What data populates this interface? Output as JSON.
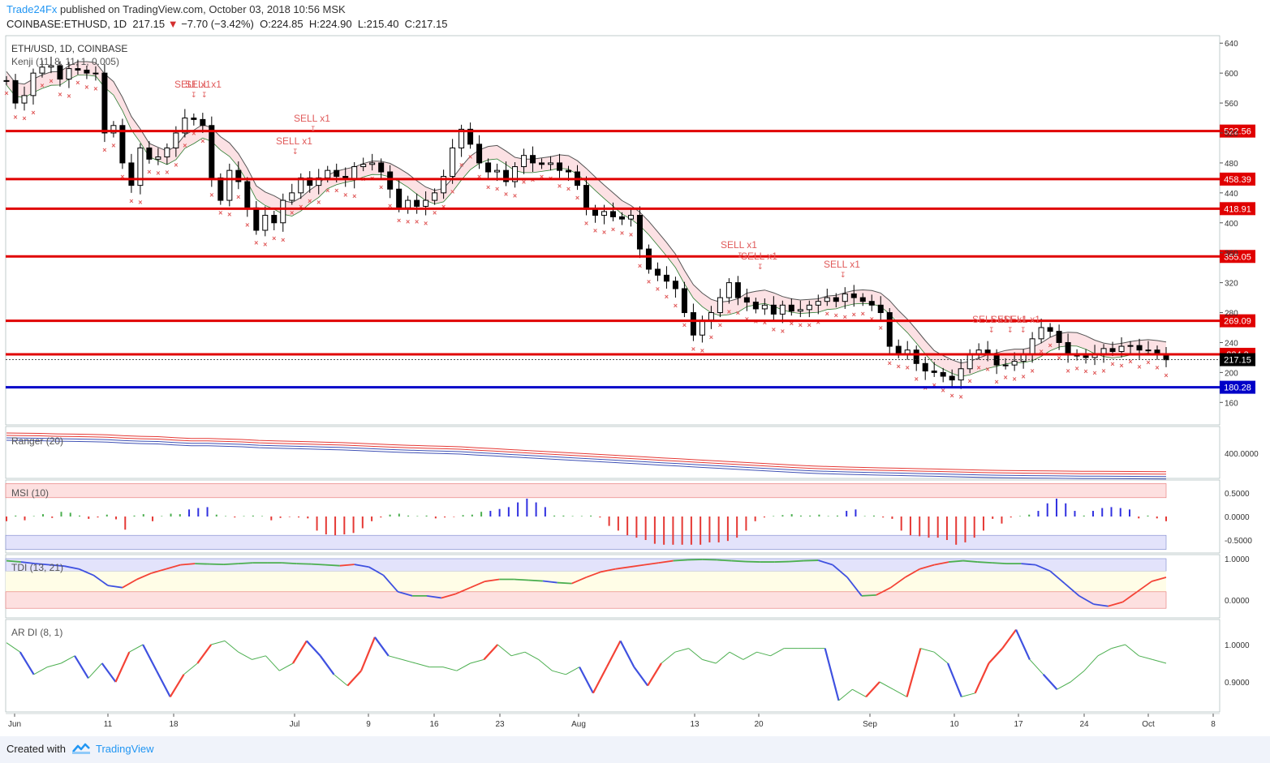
{
  "header": {
    "brand": "Trade24Fx",
    "published": "published on TradingView.com, October 03, 2018 10:56 MSK",
    "symbol": "COINBASE:ETHUSD, 1D",
    "last": "217.15",
    "change": "−7.70 (−3.42%)",
    "o_label": "O:",
    "o": "224.85",
    "h_label": "H:",
    "h": "224.90",
    "l_label": "L:",
    "l": "215.40",
    "c_label": "C:",
    "c": "217.15"
  },
  "footer": {
    "created": "Created with",
    "tradingview": "TradingView"
  },
  "colors": {
    "level_red": "#e00000",
    "level_blue": "#0000c8",
    "sell_text": "#e05a5a",
    "ranger_red": "#e53935",
    "ranger_blue": "#3f51b5",
    "msi_red": "#e53935",
    "msi_blue": "#3030e0",
    "line_green": "#4caf50",
    "tdi_red": "#f44336",
    "tdi_blue": "#3f51e0"
  },
  "chart_data": [
    {
      "type": "candlestick",
      "title": "ETH/USD, 1D, COINBASE",
      "indicator": "Kenji (11, 8, 11, 1, 0.005)",
      "ylim": [
        130,
        650
      ],
      "y_ticks": [
        160,
        200,
        240,
        280,
        320,
        360,
        400,
        440,
        480,
        520,
        560,
        600,
        640
      ],
      "x_labels": [
        "Jun",
        "11",
        "18",
        "Jul",
        "9",
        "16",
        "23",
        "Aug",
        "13",
        "20",
        "Sep",
        "10",
        "17",
        "24",
        "Oct",
        "8"
      ],
      "price_levels": [
        522.56,
        458.39,
        418.91,
        355.05,
        269.09,
        224.3,
        180.28
      ],
      "support_level": 180.28,
      "last_price": 217.15,
      "close": [
        590,
        560,
        570,
        600,
        608,
        610,
        592,
        606,
        604,
        600,
        600,
        520,
        530,
        480,
        450,
        500,
        485,
        488,
        500,
        520,
        540,
        538,
        530,
        460,
        430,
        470,
        455,
        420,
        390,
        410,
        400,
        430,
        440,
        460,
        450,
        460,
        470,
        462,
        458,
        475,
        478,
        480,
        468,
        445,
        420,
        430,
        422,
        430,
        440,
        462,
        500,
        525,
        505,
        480,
        468,
        470,
        455,
        475,
        490,
        480,
        478,
        480,
        470,
        468,
        450,
        418,
        410,
        415,
        408,
        405,
        410,
        365,
        338,
        330,
        322,
        312,
        280,
        250,
        270,
        280,
        300,
        320,
        300,
        294,
        285,
        290,
        278,
        290,
        282,
        284,
        290,
        295,
        300,
        295,
        305,
        300,
        295,
        290,
        280,
        235,
        225,
        230,
        212,
        202,
        200,
        195,
        190,
        205,
        225,
        230,
        225,
        210,
        210,
        215,
        225,
        245,
        260,
        255,
        240,
        225,
        222,
        220,
        225,
        232,
        228,
        235,
        236,
        230,
        230,
        225,
        217
      ],
      "sell_signals": [
        {
          "label": "SELL x2",
          "near": "Jun 4"
        },
        {
          "label": "SELL x1",
          "near": "Jun 18"
        },
        {
          "label": "SELL x1",
          "near": "Jun 19"
        },
        {
          "label": "SELL x1",
          "near": "Jul 2"
        },
        {
          "label": "SELL x1",
          "near": "Jul 5"
        },
        {
          "label": "SELL x1",
          "near": "Aug 17"
        },
        {
          "label": "SELL x1",
          "near": "Aug 20"
        },
        {
          "label": "SELL x1",
          "near": "Aug 30"
        },
        {
          "label": "SELL x1",
          "near": "Sep 15"
        },
        {
          "label": "SELL x1",
          "near": "Sep 16"
        },
        {
          "label": "SELL x1",
          "near": "Sep 17"
        }
      ]
    },
    {
      "type": "line",
      "title": "Ranger (20)",
      "y_ticks": [
        "400.0000"
      ],
      "series": [
        {
          "values": [
            640,
            638,
            636,
            630,
            628,
            625,
            620,
            610,
            604,
            600,
            590,
            580,
            580,
            575,
            570,
            560,
            555,
            550,
            545,
            540,
            535,
            528,
            520,
            512,
            506,
            500,
            496,
            490,
            480,
            470,
            460,
            450,
            440,
            430,
            420,
            410,
            400,
            390,
            380,
            370,
            360,
            350,
            340,
            330,
            320,
            310,
            300,
            290,
            282,
            276,
            270,
            266,
            262,
            258,
            254,
            250,
            246,
            242,
            238,
            234,
            232,
            230,
            228,
            226,
            225,
            224,
            223,
            222,
            221,
            220
          ]
        }
      ]
    },
    {
      "type": "bar",
      "title": "MSI (10)",
      "y_ticks": [
        "0.5000",
        "0.0000",
        "-0.5000"
      ],
      "values": [
        -0.1,
        0.02,
        -0.08,
        0.01,
        0.05,
        -0.03,
        0.1,
        0.08,
        0.02,
        -0.05,
        -0.02,
        0.04,
        -0.06,
        -0.28,
        0.02,
        0.05,
        -0.1,
        0.01,
        0.06,
        0.05,
        0.15,
        0.18,
        0.2,
        0.04,
        0.01,
        -0.02,
        0.01,
        0.02,
        0.01,
        -0.08,
        -0.03,
        -0.01,
        -0.02,
        -0.04,
        -0.3,
        -0.38,
        -0.4,
        -0.38,
        -0.35,
        -0.25,
        -0.1,
        -0.02,
        0.04,
        0.06,
        0.02,
        0.01,
        0.02,
        -0.04,
        -0.02,
        -0.01,
        0.03,
        0.04,
        0.1,
        0.12,
        0.16,
        0.2,
        0.3,
        0.38,
        0.3,
        0.2,
        0.02,
        0.02,
        0.01,
        0.01,
        0.02,
        -0.02,
        -0.2,
        -0.3,
        -0.4,
        -0.45,
        -0.5,
        -0.58,
        -0.6,
        -0.6,
        -0.6,
        -0.6,
        -0.6,
        -0.55,
        -0.55,
        -0.52,
        -0.45,
        -0.3,
        -0.1,
        -0.02,
        0.01,
        0.03,
        0.05,
        0.02,
        0.02,
        0.04,
        0.01,
        0.02,
        0.12,
        0.15,
        0.01,
        0.02,
        -0.02,
        -0.05,
        -0.3,
        -0.4,
        -0.42,
        -0.45,
        -0.45,
        -0.5,
        -0.6,
        -0.55,
        -0.45,
        -0.3,
        -0.05,
        -0.15,
        -0.02,
        0.01,
        0.04,
        0.12,
        0.28,
        0.38,
        0.28,
        0.12,
        0.02,
        0.12,
        0.18,
        0.2,
        0.18,
        0.15,
        -0.04,
        0.02,
        -0.04,
        -0.1
      ]
    },
    {
      "type": "line",
      "title": "TDI (13, 21)",
      "y_ticks": [
        "1.0000",
        "0.0000"
      ],
      "series": [
        {
          "values": [
            0.95,
            0.92,
            0.88,
            0.85,
            0.82,
            0.75,
            0.6,
            0.35,
            0.3,
            0.5,
            0.65,
            0.75,
            0.85,
            0.88,
            0.87,
            0.86,
            0.88,
            0.9,
            0.9,
            0.9,
            0.88,
            0.87,
            0.85,
            0.83,
            0.86,
            0.8,
            0.6,
            0.2,
            0.1,
            0.1,
            0.05,
            0.15,
            0.3,
            0.45,
            0.5,
            0.5,
            0.48,
            0.46,
            0.42,
            0.4,
            0.55,
            0.68,
            0.75,
            0.8,
            0.85,
            0.9,
            0.95,
            0.97,
            0.98,
            0.97,
            0.95,
            0.93,
            0.92,
            0.92,
            0.93,
            0.95,
            0.96,
            0.85,
            0.55,
            0.1,
            0.12,
            0.3,
            0.55,
            0.75,
            0.85,
            0.92,
            0.95,
            0.92,
            0.9,
            0.88,
            0.88,
            0.85,
            0.7,
            0.4,
            0.1,
            -0.1,
            -0.15,
            -0.05,
            0.2,
            0.45,
            0.55
          ]
        }
      ]
    },
    {
      "type": "line",
      "title": "AR DI (8, 1)",
      "y_ticks": [
        "1.0000",
        "0.9000"
      ],
      "series": [
        {
          "values": [
            1.005,
            0.98,
            0.92,
            0.94,
            0.95,
            0.97,
            0.91,
            0.95,
            0.9,
            0.98,
            1.0,
            0.93,
            0.86,
            0.92,
            0.95,
            1.0,
            1.01,
            0.98,
            0.96,
            0.97,
            0.93,
            0.95,
            1.01,
            0.97,
            0.92,
            0.89,
            0.93,
            1.02,
            0.97,
            0.96,
            0.95,
            0.94,
            0.94,
            0.93,
            0.95,
            0.96,
            1.0,
            0.97,
            0.98,
            0.96,
            0.93,
            0.92,
            0.94,
            0.87,
            0.94,
            1.01,
            0.94,
            0.89,
            0.95,
            0.98,
            0.99,
            0.96,
            0.95,
            0.98,
            0.96,
            0.98,
            0.97,
            0.99,
            0.99,
            0.99,
            0.99,
            0.85,
            0.88,
            0.86,
            0.9,
            0.88,
            0.86,
            0.99,
            0.98,
            0.95,
            0.86,
            0.87,
            0.95,
            0.99,
            1.04,
            0.96,
            0.92,
            0.88,
            0.9,
            0.93,
            0.97,
            0.99,
            1.0,
            0.97,
            0.96,
            0.95
          ]
        }
      ]
    }
  ]
}
